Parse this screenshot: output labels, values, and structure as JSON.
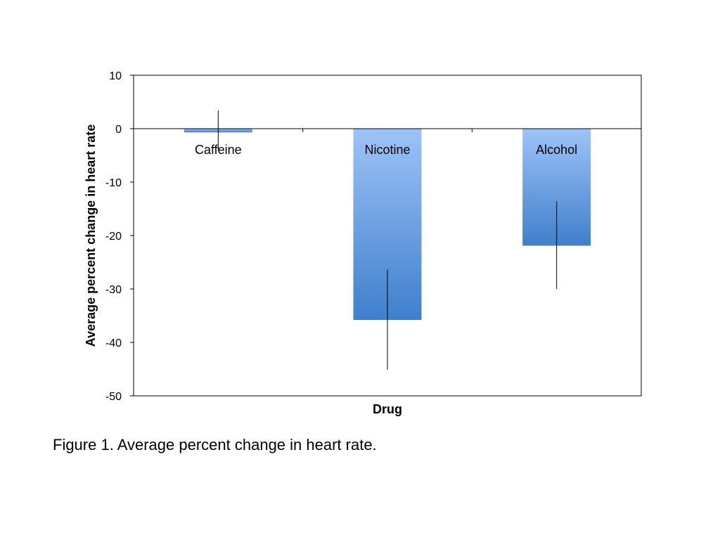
{
  "chart_data": {
    "type": "bar",
    "categories": [
      "Caffeine",
      "Nicotine",
      "Alcohol"
    ],
    "values": [
      -0.7,
      -35.8,
      -21.9
    ],
    "error_bars": [
      [
        -4.0,
        3.4
      ],
      [
        -45.1,
        -26.4
      ],
      [
        -30.0,
        -13.6
      ]
    ],
    "xlabel": "Drug",
    "ylabel": "Average percent change in heart rate",
    "ylim": [
      -50,
      10
    ],
    "yticks": [
      10,
      0,
      -10,
      -20,
      -30,
      -40,
      -50
    ],
    "grid": false,
    "bar_color_light": "#9ec3f8",
    "bar_color_dark": "#3f7fcc"
  },
  "caption": "Figure 1. Average percent change in heart rate."
}
